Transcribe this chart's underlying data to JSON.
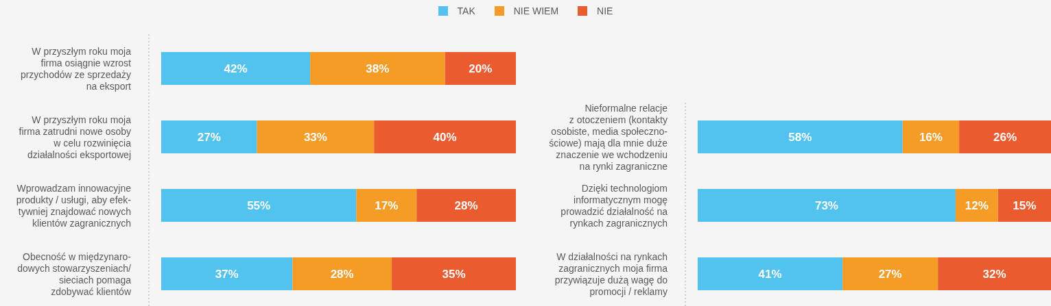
{
  "chart_data": [
    {
      "type": "bar",
      "orientation": "horizontal",
      "stacked": true,
      "legend": "top",
      "tick_labels": "y",
      "xlim": [
        0,
        100
      ],
      "categories": [
        "W przyszłym roku moja\nfirma osiągnie wzrost\nprzychodów ze sprzedaży\nna eksport",
        "W przyszłym roku moja\nfirma zatrudni nowe osoby\nw celu rozwinięcia\ndziałalności eksportowej",
        "Wprowadzam innowacyjne\nprodukty / usługi, aby efek-\ntywniej znajdować nowych\nklientów zagranicznych",
        "Obecność w międzynaro-\ndowych stowarzyszeniach/\nsieciach pomaga\nzdobywać klientów"
      ],
      "series": [
        {
          "name": "TAK",
          "color": "#52c3ee",
          "values": [
            42,
            27,
            55,
            37
          ],
          "value_labels": [
            "42%",
            "27%",
            "55%",
            "37%"
          ]
        },
        {
          "name": "NIE WIEM",
          "color": "#f59c27",
          "values": [
            38,
            33,
            17,
            28
          ],
          "value_labels": [
            "38%",
            "33%",
            "17%",
            "28%"
          ]
        },
        {
          "name": "NIE",
          "color": "#ea5c30",
          "values": [
            20,
            40,
            28,
            35
          ],
          "value_labels": [
            "20%",
            "40%",
            "28%",
            "35%"
          ]
        }
      ]
    },
    {
      "type": "bar",
      "orientation": "horizontal",
      "stacked": true,
      "tick_labels": "y",
      "xlim": [
        0,
        100
      ],
      "categories": [
        "Nieformalne relacje\nz otoczeniem (kontakty\nosobiste, media społeczno-\nściowe) mają dla mnie duże\nznaczenie we wchodzeniu\nna rynki zagraniczne",
        "Dzięki technologiom\ninformatycznym mogę\nprowadzić działalność na\nrynkach zagranicznych",
        "W działalności na rynkach\nzagranicznych moja firma\nprzywiązuje dużą wagę do\npromocji / reklamy"
      ],
      "series": [
        {
          "color": "#52c3ee",
          "values": [
            58,
            73,
            41
          ],
          "value_labels": [
            "58%",
            "73%",
            "41%"
          ]
        },
        {
          "color": "#f59c27",
          "values": [
            16,
            12,
            27
          ],
          "value_labels": [
            "16%",
            "12%",
            "27%"
          ]
        },
        {
          "color": "#ea5c30",
          "values": [
            26,
            15,
            32
          ],
          "value_labels": [
            "26%",
            "15%",
            "32%"
          ]
        }
      ]
    }
  ]
}
